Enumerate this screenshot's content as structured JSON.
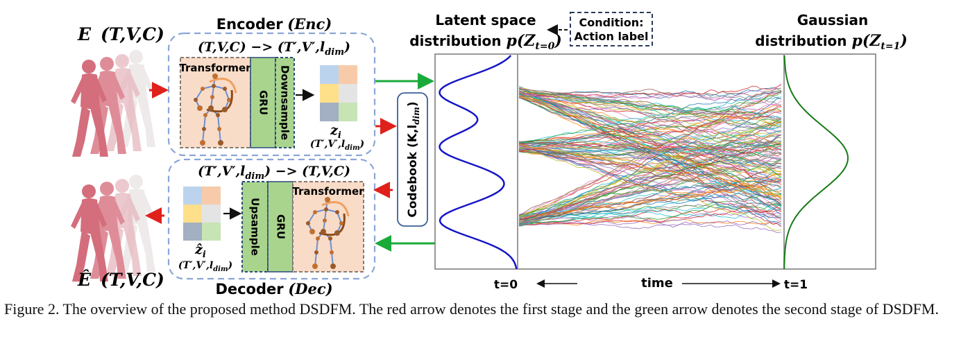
{
  "labels": {
    "input_E_sym": "E",
    "input_E_args": "(T,V,C)",
    "output_E_sym": "Ê",
    "output_E_args": "(T,V,C)",
    "encoder_title_word": "Encoder",
    "encoder_title_abbr": "(Enc)",
    "decoder_title_word": "Decoder",
    "decoder_title_abbr": "(Dec)",
    "enc_shape": "(T,V,C) −> (T′,V′,l",
    "enc_shape_sub": "dim",
    "enc_shape_close": ")",
    "dec_shape": "(T′,V′,l",
    "dec_shape_sub": "dim",
    "dec_shape_close": ") −> (T,V,C)",
    "transformer": "Transformer",
    "gru": "GRU",
    "downsample": "Downsample",
    "upsample": "Upsample",
    "z_enc": "z",
    "z_enc_sub": "i",
    "z_dec": "ẑ",
    "z_dec_sub": "i",
    "z_shape": "(T′,V′,l",
    "z_shape_sub": "dim",
    "z_shape_close": ")",
    "codebook": "Codebook (K,l",
    "codebook_sub": "dim",
    "codebook_close": ")",
    "latent_title_1": "Latent space",
    "latent_title_2": "distribution ",
    "latent_p": "p(Z",
    "latent_sub": "t=0",
    "latent_close": ")",
    "condition_1": "Condition:",
    "condition_2": "Action label",
    "gauss_title_1": "Gaussian",
    "gauss_title_2": "distribution ",
    "gauss_p": "p(Z",
    "gauss_sub": "t=1",
    "gauss_close": ")",
    "t0": "t=0",
    "time": "time",
    "t1": "t=1"
  },
  "caption": "Figure 2. The overview of the proposed method DSDFM. The red arrow denotes the first stage and the green arrow denotes the second stage of DSDFM.",
  "colors": {
    "red_arrow": "#e0201a",
    "green_arrow": "#1aaa3a",
    "latent_curve": "#1515c8",
    "gauss_curve": "#157a15",
    "dashed_box": "#8aa6d6",
    "transformer_fill": "#f8dcc8",
    "gru_fill": "#a9d48e"
  }
}
